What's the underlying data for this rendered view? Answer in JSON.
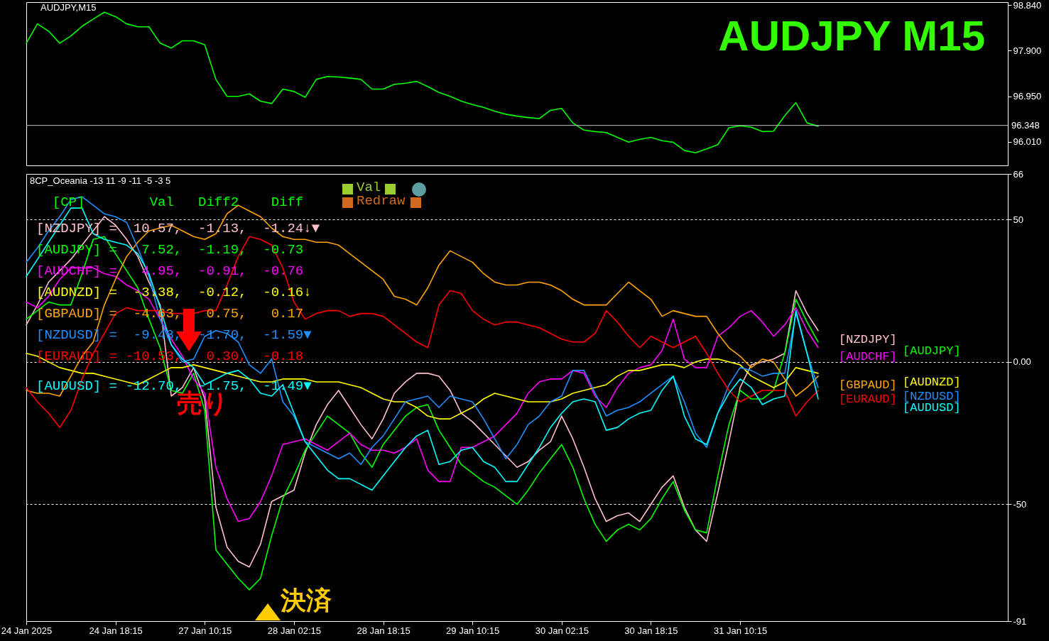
{
  "chart_data": [
    {
      "type": "line",
      "title": "AUDJPY  M15",
      "subtitle": "AUDJPY,M15",
      "categories": [
        null,
        null,
        null,
        null,
        null,
        null,
        null,
        null,
        null,
        null,
        null,
        null,
        null,
        null,
        null,
        null,
        null,
        null,
        null,
        null,
        null,
        null,
        null,
        null,
        null,
        null,
        null,
        null,
        null,
        null,
        null,
        null,
        null,
        null,
        null,
        null,
        null,
        null,
        null,
        null,
        null,
        null,
        null,
        null,
        null,
        null,
        null,
        null,
        null,
        null,
        null,
        null,
        null,
        null,
        null,
        null,
        null,
        null,
        null,
        null,
        null,
        null,
        null,
        null,
        null,
        null,
        null,
        null,
        null,
        null,
        null,
        null,
        null,
        null,
        null,
        null,
        null,
        null,
        null,
        null,
        null,
        null,
        null,
        null,
        null,
        null,
        null,
        null,
        null
      ],
      "ylim": [
        95.52,
        98.9
      ],
      "yticks": [
        {
          "value": 96.01,
          "label": "96.010"
        },
        {
          "value": 96.95,
          "label": "96.950"
        },
        {
          "value": 97.9,
          "label": "97.900"
        },
        {
          "value": 98.84,
          "label": "98.840"
        }
      ],
      "tick_labels": "y",
      "series": [
        {
          "color": "#00ff00",
          "values": [
            98.05,
            98.45,
            98.3,
            98.05,
            98.2,
            98.4,
            98.55,
            98.69,
            98.6,
            98.45,
            98.39,
            98.39,
            98.05,
            97.95,
            98.1,
            98.1,
            98.02,
            97.3,
            96.95,
            96.95,
            97.0,
            96.85,
            96.8,
            97.1,
            97.05,
            96.93,
            97.3,
            97.36,
            97.35,
            97.33,
            97.3,
            97.1,
            97.1,
            97.2,
            97.22,
            97.26,
            97.15,
            97.03,
            96.95,
            96.85,
            96.78,
            96.72,
            96.64,
            96.58,
            96.54,
            96.51,
            96.49,
            96.66,
            96.7,
            96.4,
            96.25,
            96.22,
            96.2,
            96.1,
            96.0,
            96.06,
            96.1,
            96.03,
            96.0,
            95.83,
            95.78,
            95.86,
            95.95,
            96.3,
            96.34,
            96.31,
            96.22,
            96.23,
            96.55,
            96.82,
            96.4,
            96.33,
            null,
            null,
            null,
            null,
            null,
            null,
            null,
            null,
            null,
            null,
            null,
            null,
            null,
            null,
            null,
            null,
            null
          ]
        }
      ],
      "ref_lines": [
        {
          "axis": "y",
          "value": 96.348,
          "label": "96.348",
          "color": "#c0c0c0"
        }
      ]
    },
    {
      "type": "line",
      "title": "8CP_Oceania -13 11 -9 -11 -5 -3 5",
      "categories": [
        "24 Jan 2025",
        null,
        null,
        null,
        null,
        null,
        null,
        null,
        "24 Jan 18:15",
        null,
        null,
        null,
        null,
        null,
        null,
        null,
        "27 Jan 10:15",
        null,
        null,
        null,
        null,
        null,
        null,
        null,
        "28 Jan 02:15",
        null,
        null,
        null,
        null,
        null,
        null,
        null,
        "28 Jan 18:15",
        null,
        null,
        null,
        null,
        null,
        null,
        null,
        "29 Jan 10:15",
        null,
        null,
        null,
        null,
        null,
        null,
        null,
        "30 Jan 02:15",
        null,
        null,
        null,
        null,
        null,
        null,
        null,
        "30 Jan 18:15",
        null,
        null,
        null,
        null,
        null,
        null,
        null,
        "31 Jan 10:15",
        null,
        null,
        null,
        null,
        null,
        null,
        null,
        null,
        null,
        null,
        null,
        null,
        null,
        null,
        null,
        null,
        null,
        null,
        null,
        null,
        null,
        null,
        null,
        null
      ],
      "ylim": [
        -91,
        66
      ],
      "yticks": [
        -91,
        -50,
        {
          "value": 0,
          "label": "0.00"
        },
        50,
        66
      ],
      "grid": "y",
      "series": [
        {
          "name": "[NZDJPY]",
          "color": "#ffc0cb",
          "values": [
            13,
            20,
            28,
            32,
            36,
            41,
            46,
            51,
            48,
            43,
            37,
            28,
            20,
            -12,
            -9,
            -2,
            -13,
            -51,
            -65,
            -70,
            -72,
            -64,
            -49,
            -47,
            -45,
            -32,
            -22,
            -15,
            -10,
            -16,
            -22,
            -27,
            -20,
            -11,
            -7,
            -4,
            -4,
            -5,
            -10,
            -18,
            -21,
            -25,
            -29,
            -33,
            -37,
            -35,
            -31,
            -28,
            -19,
            -27,
            -37,
            -48,
            -56,
            -54,
            -53,
            -56,
            -50,
            -44,
            -40,
            -51,
            -59,
            -63,
            -46,
            -28,
            -9,
            -1,
            0,
            1,
            3,
            25,
            17,
            11,
            null,
            null,
            null,
            null,
            null,
            null,
            null,
            null,
            null,
            null,
            null,
            null,
            null,
            null,
            null,
            null,
            null
          ]
        },
        {
          "name": "[AUDJPY]",
          "color": "#00ff00",
          "values": [
            15,
            18,
            21,
            20,
            20,
            31,
            43,
            44,
            38,
            32,
            26,
            15,
            5,
            -10,
            -11,
            -4,
            -17,
            -66,
            -71,
            -76,
            -80,
            -76,
            -61,
            -48,
            -40,
            -31,
            -25,
            -19,
            -22,
            -25,
            -32,
            -37,
            -29,
            -24,
            -19,
            -16,
            -15,
            -24,
            -30,
            -36,
            -39,
            -42,
            -44,
            -47,
            -50,
            -45,
            -39,
            -34,
            -29,
            -37,
            -48,
            -57,
            -63,
            -59,
            -57,
            -59,
            -55,
            -48,
            -42,
            -52,
            -59,
            -60,
            -40,
            -22,
            -10,
            -13,
            -13,
            -10,
            3,
            22,
            14,
            7,
            null,
            null,
            null,
            null,
            null,
            null,
            null,
            null,
            null,
            null,
            null,
            null,
            null,
            null,
            null,
            null,
            null
          ]
        },
        {
          "name": "[AUDCHF]",
          "color": "#ff00ff",
          "values": [
            21,
            19,
            23,
            29,
            33,
            33,
            33,
            31,
            30,
            27,
            25,
            22,
            15,
            8,
            2,
            -6,
            -11,
            -37,
            -48,
            -56,
            -55,
            -49,
            -40,
            -29,
            -28,
            -27,
            -29,
            -31,
            -28,
            -25,
            -29,
            -31,
            -31,
            -32,
            -30,
            -27,
            -38,
            -42,
            -42,
            -30,
            -30,
            -28,
            -26,
            -22,
            -18,
            -11,
            -7,
            -6,
            -6,
            -3,
            -4,
            -12,
            -16,
            -9,
            -4,
            -2,
            -1,
            4,
            15,
            1,
            -2,
            -2,
            9,
            12,
            16,
            18,
            14,
            9,
            13,
            19,
            11,
            5,
            null,
            null,
            null,
            null,
            null,
            null,
            null,
            null,
            null,
            null,
            null,
            null,
            null,
            null,
            null,
            null,
            null
          ]
        },
        {
          "name": "[AUDNZD]",
          "color": "#ffff00",
          "values": [
            3,
            2,
            0,
            -2,
            -3,
            -4,
            -4,
            -5,
            -6,
            -7,
            -8,
            -6,
            -4,
            -2,
            -2,
            -1,
            -2,
            -3,
            -4,
            -5,
            -6,
            -7,
            -7,
            -6,
            -6,
            -6,
            -7,
            -7,
            -7,
            -8,
            -9,
            -11,
            -13,
            -14,
            -14,
            -16,
            -19,
            -20,
            -20,
            -18,
            -16,
            -13,
            -11,
            -12,
            -13,
            -14,
            -14,
            -14,
            -13,
            -11,
            -10,
            -9,
            -8,
            -5,
            -3,
            -3,
            -2,
            -1,
            -1,
            -2,
            0,
            1,
            1,
            0,
            -1,
            -5,
            -7,
            -9,
            -7,
            -2,
            -3,
            -4,
            null,
            null,
            null,
            null,
            null,
            null,
            null,
            null,
            null,
            null,
            null,
            null,
            null,
            null,
            null,
            null,
            null
          ]
        },
        {
          "name": "[GBPAUD]",
          "color": "#ffa500",
          "values": [
            -10,
            -11,
            -11,
            -12,
            -5,
            2,
            7,
            20,
            29,
            37,
            42,
            46,
            47,
            48,
            46,
            44,
            43,
            45,
            52,
            55,
            53,
            51,
            47,
            44,
            43,
            43,
            42,
            42,
            41,
            38,
            35,
            32,
            29,
            23,
            22,
            20,
            26,
            34,
            39,
            37,
            35,
            31,
            28,
            27,
            27,
            28,
            28,
            27,
            25,
            22,
            20,
            20,
            20,
            24,
            28,
            25,
            22,
            16,
            18,
            17,
            16,
            16,
            10,
            5,
            2,
            -2,
            1,
            0,
            -6,
            -12,
            -9,
            -5,
            null,
            null,
            null,
            null,
            null,
            null,
            null,
            null,
            null,
            null,
            null,
            null,
            null,
            null,
            null,
            null,
            null
          ]
        },
        {
          "name": "[NZDUSD]",
          "color": "#1e90ff",
          "values": [
            35,
            40,
            46,
            51,
            57,
            58,
            55,
            52,
            51,
            49,
            40,
            30,
            15,
            6,
            0,
            1,
            9,
            11,
            10,
            7,
            -1,
            -4,
            1,
            -14,
            -19,
            -28,
            -30,
            -32,
            -34,
            -32,
            -36,
            -30,
            -26,
            -20,
            -14,
            -13,
            -12,
            -16,
            -12,
            -13,
            -14,
            -20,
            -27,
            -34,
            -29,
            -22,
            -19,
            -14,
            -12,
            -3,
            -3,
            -11,
            -19,
            -17,
            -16,
            -14,
            -11,
            -8,
            -5,
            -14,
            -25,
            -30,
            -18,
            -8,
            -2,
            -3,
            -5,
            -4,
            -4,
            17,
            3,
            -9,
            null,
            null,
            null,
            null,
            null,
            null,
            null,
            null,
            null,
            null,
            null,
            null,
            null,
            null,
            null,
            null,
            null
          ]
        },
        {
          "name": "[EURAUD]",
          "color": "#ff0000",
          "values": [
            -9,
            -14,
            -18,
            -23,
            -17,
            -6,
            3,
            10,
            17,
            19,
            18,
            18,
            18,
            17,
            17,
            17,
            18,
            18,
            27,
            37,
            44,
            43,
            41,
            33,
            21,
            15,
            17,
            18,
            18,
            16,
            17,
            17,
            16,
            13,
            10,
            7,
            5,
            20,
            25,
            24,
            18,
            15,
            13,
            14,
            14,
            13,
            12,
            10,
            8,
            7,
            7,
            10,
            18,
            14,
            9,
            5,
            9,
            7,
            5,
            7,
            9,
            3,
            -4,
            -10,
            -14,
            -12,
            -10,
            -10,
            -10,
            -19,
            -14,
            -10,
            null,
            null,
            null,
            null,
            null,
            null,
            null,
            null,
            null,
            null,
            null,
            null,
            null,
            null,
            null,
            null,
            null
          ]
        },
        {
          "name": "[AUDUSD]",
          "color": "#00ffff",
          "values": [
            30,
            36,
            42,
            48,
            54,
            54,
            45,
            43,
            42,
            41,
            38,
            31,
            19,
            6,
            1,
            -2,
            -8,
            -6,
            -4,
            -3,
            -6,
            -11,
            -12,
            -8,
            -18,
            -28,
            -33,
            -38,
            -41,
            -41,
            -43,
            -45,
            -40,
            -35,
            -30,
            -26,
            -24,
            -36,
            -35,
            -31,
            -30,
            -35,
            -37,
            -42,
            -42,
            -36,
            -30,
            -23,
            -18,
            -14,
            -13,
            -14,
            -24,
            -23,
            -20,
            -18,
            -17,
            -10,
            -5,
            -19,
            -27,
            -29,
            -18,
            -11,
            -6,
            -9,
            -15,
            -13,
            -12,
            18,
            3,
            -13,
            null,
            null,
            null,
            null,
            null,
            null,
            null,
            null,
            null,
            null,
            null,
            null,
            null,
            null,
            null,
            null,
            null
          ]
        }
      ],
      "annotations": [
        "  [CP]        Val   Diff2    Diff",
        "[NZDJPY] =  10.57,  -1.13,  -1.24↓▼",
        "[AUDJPY] =   7.52,  -1.19,  -0.73",
        "[AUDCHF] =   4.95,  -0.91,  -0.76",
        "[AUDNZD] =  -3.38,  -0.12,  -0.16↓",
        "[GBPAUD] =  -4.63,   0.75,   0.17",
        "[NZDUSD] =  -9.48,  -1.70,  -1.59▼",
        "[EURAUD] = -10.53,   0.30,  -0.18",
        "[AUDUSD] = -12.70,  -1.75,  -1.49▼",
        "Val",
        "Redraw",
        "売り",
        "決済"
      ]
    }
  ]
}
